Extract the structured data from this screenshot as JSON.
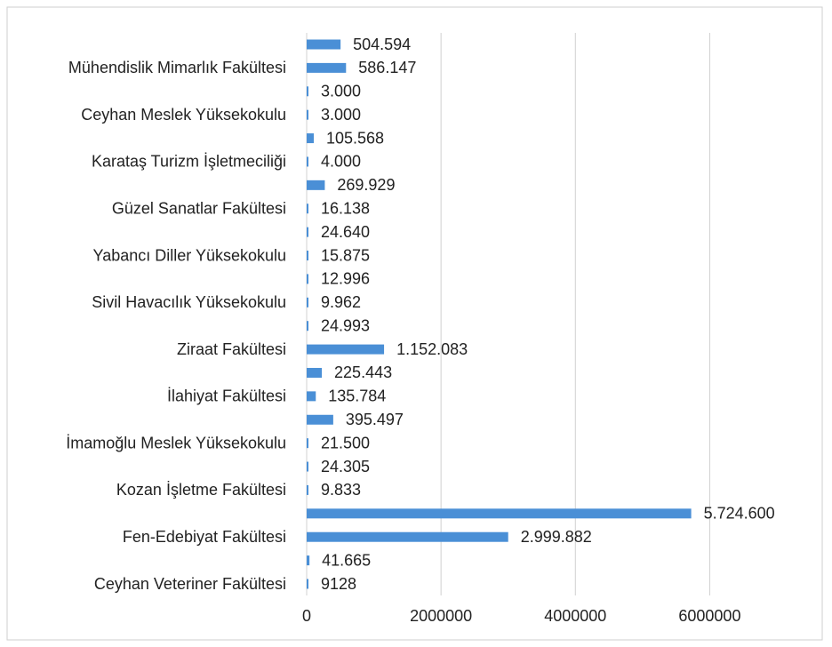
{
  "chart_data": {
    "type": "barh",
    "categories": [
      null,
      "Mühendislik Mimarlık Fakültesi",
      null,
      "Ceyhan Meslek Yüksekokulu",
      null,
      "Karataş Turizm İşletmeciliği",
      null,
      "Güzel Sanatlar Fakültesi",
      null,
      "Yabancı Diller Yüksekokulu",
      null,
      "Sivil Havacılık Yüksekokulu",
      null,
      "Ziraat Fakültesi",
      null,
      "İlahiyat Fakültesi",
      null,
      "İmamoğlu Meslek Yüksekokulu",
      null,
      "Kozan İşletme Fakültesi",
      null,
      "Fen-Edebiyat Fakültesi",
      null,
      "Ceyhan Veteriner Fakültesi"
    ],
    "values": [
      504594,
      586147,
      3000,
      3000,
      105568,
      4000,
      269929,
      16138,
      24640,
      15875,
      12996,
      9962,
      24993,
      1152083,
      225443,
      135784,
      395497,
      21500,
      24305,
      9833,
      5724600,
      2999882,
      41665,
      9128
    ],
    "value_labels": [
      "504.594",
      "586.147",
      "3.000",
      "3.000",
      "105.568",
      "4.000",
      "269.929",
      "16.138",
      "24.640",
      "15.875",
      "12.996",
      "9.962",
      "24.993",
      "1.152.083",
      "225.443",
      "135.784",
      "395.497",
      "21.500",
      "24.305",
      "9.833",
      "5.724.600",
      "2.999.882",
      "41.665",
      "9128"
    ],
    "color": "#4a8fd6",
    "xlim": [
      0,
      7000000
    ],
    "xticks": [
      0,
      2000000,
      4000000,
      6000000
    ],
    "grid": true
  }
}
